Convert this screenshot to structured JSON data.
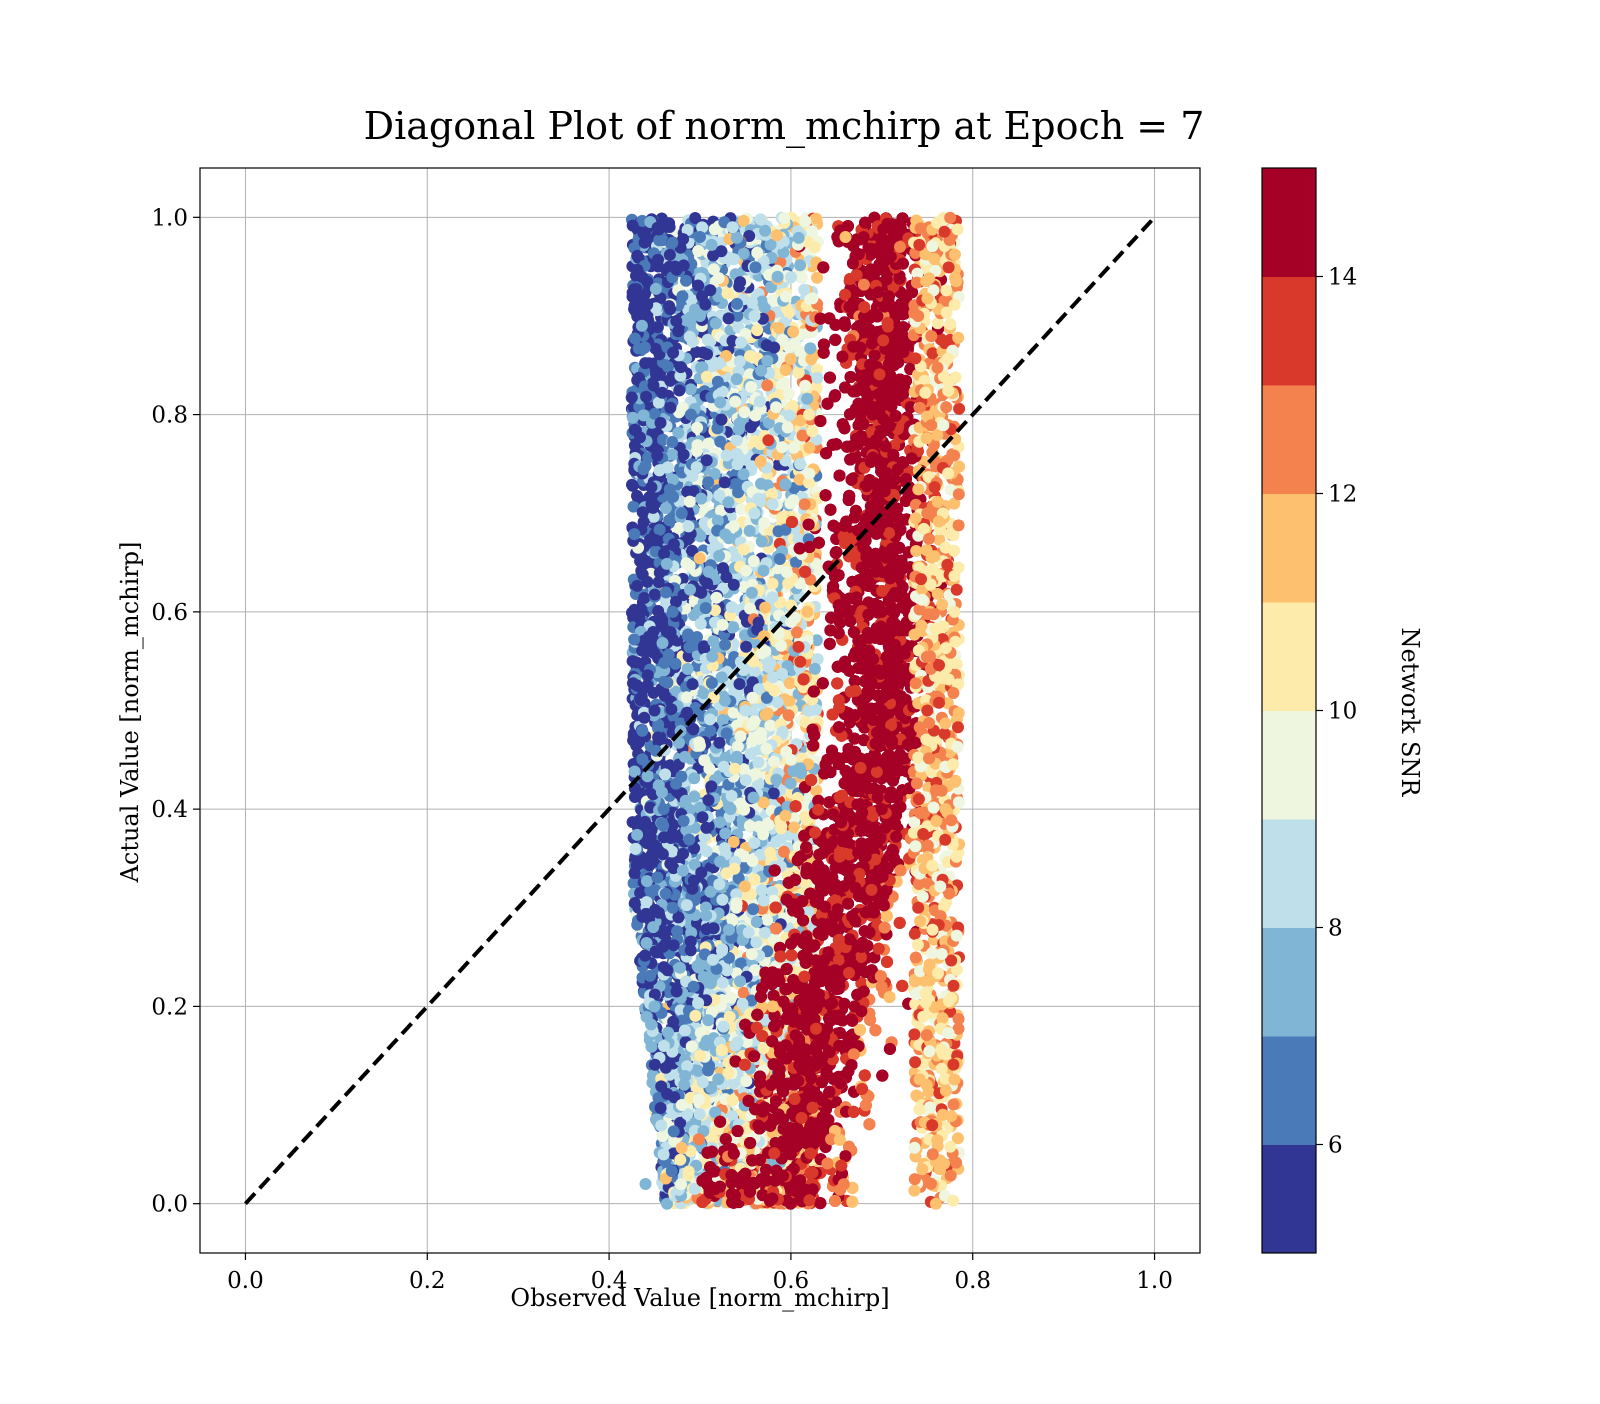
{
  "chart_data": {
    "type": "scatter",
    "title": "Diagonal Plot of norm_mchirp at Epoch = 7",
    "xlabel": "Observed Value [norm_mchirp]",
    "ylabel": "Actual Value [norm_mchirp]",
    "xlim": [
      -0.05,
      1.05
    ],
    "ylim": [
      -0.05,
      1.05
    ],
    "x_ticks": [
      0.0,
      0.2,
      0.4,
      0.6,
      0.8,
      1.0
    ],
    "y_ticks": [
      0.0,
      0.2,
      0.4,
      0.6,
      0.8,
      1.0
    ],
    "x_tick_labels": [
      "0.0",
      "0.2",
      "0.4",
      "0.6",
      "0.8",
      "1.0"
    ],
    "y_tick_labels": [
      "0.0",
      "0.2",
      "0.4",
      "0.6",
      "0.8",
      "1.0"
    ],
    "grid": true,
    "reference_line": {
      "style": "dashed",
      "color": "#000000",
      "x": [
        0.0,
        1.0
      ],
      "y": [
        0.0,
        1.0
      ]
    },
    "colorbar": {
      "label": "Network SNR",
      "range": [
        5,
        15
      ],
      "levels": [
        5,
        6,
        7,
        8,
        9,
        10,
        11,
        12,
        13,
        14,
        15
      ],
      "ticks": [
        6,
        8,
        10,
        12,
        14
      ],
      "tick_labels": [
        "6",
        "8",
        "10",
        "12",
        "14"
      ],
      "colors": [
        "#313695",
        "#4575b4",
        "#74add1",
        "#abd9e9",
        "#e0f3f8",
        "#ffffbf",
        "#fee090",
        "#fdae61",
        "#f46d43",
        "#d73027",
        "#a50026"
      ],
      "band_colors": [
        "#313695",
        "#4a7ab8",
        "#81b5d6",
        "#bfe0ea",
        "#eef6e0",
        "#fcebab",
        "#fcc06e",
        "#f4824e",
        "#d9392a",
        "#a50026"
      ]
    },
    "series": [
      {
        "description": "Predicted vs actual normalized chirp mass, colored by network SNR",
        "points": [
          {
            "x": 0.44,
            "y": 0.02,
            "c": 7
          },
          {
            "x": 0.46,
            "y": 0.05,
            "c": 8
          },
          {
            "x": 0.48,
            "y": 0.1,
            "c": 9
          },
          {
            "x": 0.5,
            "y": 0.15,
            "c": 10
          },
          {
            "x": 0.45,
            "y": 0.2,
            "c": 7
          },
          {
            "x": 0.47,
            "y": 0.3,
            "c": 6
          },
          {
            "x": 0.46,
            "y": 0.4,
            "c": 6
          },
          {
            "x": 0.45,
            "y": 0.5,
            "c": 5
          },
          {
            "x": 0.47,
            "y": 0.6,
            "c": 6
          },
          {
            "x": 0.48,
            "y": 0.7,
            "c": 6
          },
          {
            "x": 0.49,
            "y": 0.8,
            "c": 6
          },
          {
            "x": 0.5,
            "y": 0.9,
            "c": 7
          },
          {
            "x": 0.5,
            "y": 0.98,
            "c": 6
          },
          {
            "x": 0.54,
            "y": 0.3,
            "c": 9
          },
          {
            "x": 0.55,
            "y": 0.5,
            "c": 8
          },
          {
            "x": 0.56,
            "y": 0.7,
            "c": 8
          },
          {
            "x": 0.56,
            "y": 0.9,
            "c": 8
          },
          {
            "x": 0.58,
            "y": 0.2,
            "c": 11
          },
          {
            "x": 0.6,
            "y": 0.45,
            "c": 9
          },
          {
            "x": 0.62,
            "y": 0.8,
            "c": 10
          },
          {
            "x": 0.55,
            "y": 0.02,
            "c": 15
          },
          {
            "x": 0.6,
            "y": 0.05,
            "c": 15
          },
          {
            "x": 0.64,
            "y": 0.1,
            "c": 15
          },
          {
            "x": 0.67,
            "y": 0.2,
            "c": 15
          },
          {
            "x": 0.69,
            "y": 0.3,
            "c": 15
          },
          {
            "x": 0.7,
            "y": 0.4,
            "c": 15
          },
          {
            "x": 0.7,
            "y": 0.5,
            "c": 15
          },
          {
            "x": 0.7,
            "y": 0.6,
            "c": 15
          },
          {
            "x": 0.7,
            "y": 0.7,
            "c": 15
          },
          {
            "x": 0.69,
            "y": 0.8,
            "c": 15
          },
          {
            "x": 0.69,
            "y": 0.9,
            "c": 15
          },
          {
            "x": 0.68,
            "y": 0.98,
            "c": 15
          },
          {
            "x": 0.74,
            "y": 0.3,
            "c": 13
          },
          {
            "x": 0.75,
            "y": 0.5,
            "c": 13
          },
          {
            "x": 0.75,
            "y": 0.7,
            "c": 12
          },
          {
            "x": 0.74,
            "y": 0.9,
            "c": 12
          },
          {
            "x": 0.77,
            "y": 0.4,
            "c": 11
          },
          {
            "x": 0.78,
            "y": 0.6,
            "c": 10
          },
          {
            "x": 0.66,
            "y": 0.98,
            "c": 11
          },
          {
            "x": 0.72,
            "y": 0.97,
            "c": 12
          }
        ],
        "distribution_note": "Dense cloud of many thousands of points: x in [0.42, 0.79], y in [0, 1]. Low-SNR (blue) points occupy the left side (x≈0.42-0.62); high-SNR (dark red) points form a dense band curving from x≈0.55-0.63 near y=0 to x≈0.66-0.72 for y≥0.3."
      }
    ]
  }
}
